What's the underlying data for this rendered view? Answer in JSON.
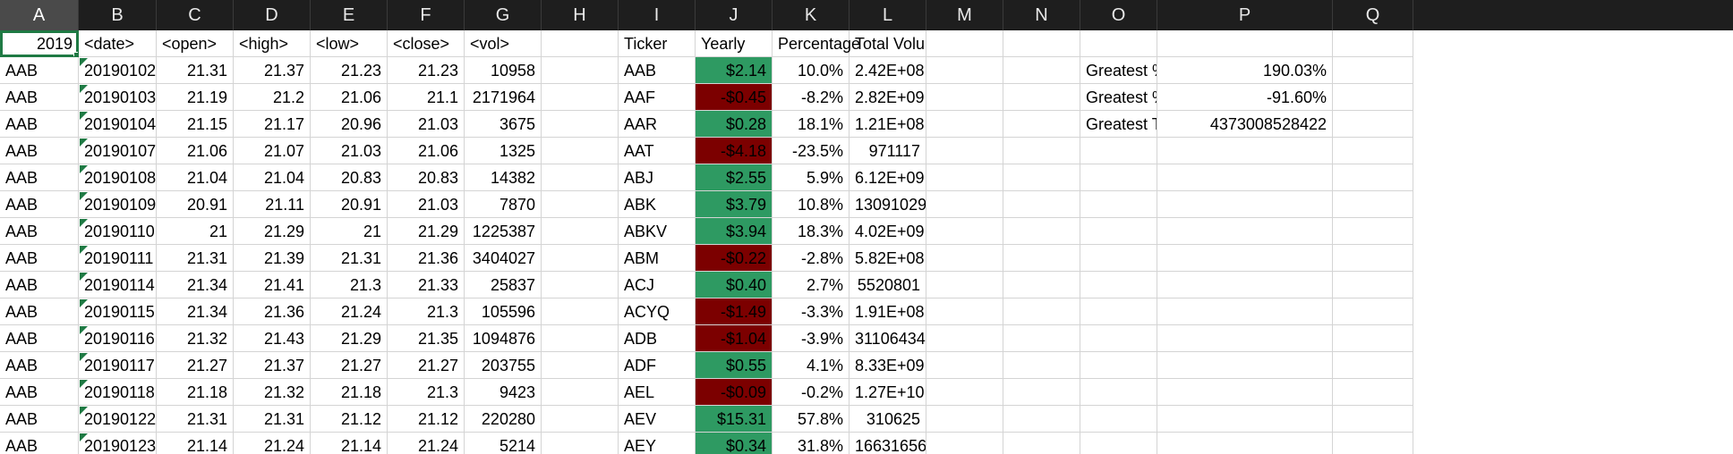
{
  "columns": [
    "A",
    "B",
    "C",
    "D",
    "E",
    "F",
    "G",
    "H",
    "I",
    "J",
    "K",
    "L",
    "M",
    "N",
    "O",
    "P",
    "Q"
  ],
  "active_cell": "A1",
  "header_row": {
    "A": "2019",
    "B": "<date>",
    "C": "<open>",
    "D": "<high>",
    "E": "<low>",
    "F": "<close>",
    "G": "<vol>",
    "I": "Ticker",
    "J": "Yearly",
    "K": "Percentage",
    "L": "Total Volume"
  },
  "stock_rows": [
    {
      "ticker": "AAB",
      "date": "20190102",
      "open": "21.31",
      "high": "21.37",
      "low": "21.23",
      "close": "21.23",
      "vol": "10958"
    },
    {
      "ticker": "AAB",
      "date": "20190103",
      "open": "21.19",
      "high": "21.2",
      "low": "21.06",
      "close": "21.1",
      "vol": "2171964"
    },
    {
      "ticker": "AAB",
      "date": "20190104",
      "open": "21.15",
      "high": "21.17",
      "low": "20.96",
      "close": "21.03",
      "vol": "3675"
    },
    {
      "ticker": "AAB",
      "date": "20190107",
      "open": "21.06",
      "high": "21.07",
      "low": "21.03",
      "close": "21.06",
      "vol": "1325"
    },
    {
      "ticker": "AAB",
      "date": "20190108",
      "open": "21.04",
      "high": "21.04",
      "low": "20.83",
      "close": "20.83",
      "vol": "14382"
    },
    {
      "ticker": "AAB",
      "date": "20190109",
      "open": "20.91",
      "high": "21.11",
      "low": "20.91",
      "close": "21.03",
      "vol": "7870"
    },
    {
      "ticker": "AAB",
      "date": "20190110",
      "open": "21",
      "high": "21.29",
      "low": "21",
      "close": "21.29",
      "vol": "1225387"
    },
    {
      "ticker": "AAB",
      "date": "20190111",
      "open": "21.31",
      "high": "21.39",
      "low": "21.31",
      "close": "21.36",
      "vol": "3404027"
    },
    {
      "ticker": "AAB",
      "date": "20190114",
      "open": "21.34",
      "high": "21.41",
      "low": "21.3",
      "close": "21.33",
      "vol": "25837"
    },
    {
      "ticker": "AAB",
      "date": "20190115",
      "open": "21.34",
      "high": "21.36",
      "low": "21.24",
      "close": "21.3",
      "vol": "105596"
    },
    {
      "ticker": "AAB",
      "date": "20190116",
      "open": "21.32",
      "high": "21.43",
      "low": "21.29",
      "close": "21.35",
      "vol": "1094876"
    },
    {
      "ticker": "AAB",
      "date": "20190117",
      "open": "21.27",
      "high": "21.37",
      "low": "21.27",
      "close": "21.27",
      "vol": "203755"
    },
    {
      "ticker": "AAB",
      "date": "20190118",
      "open": "21.18",
      "high": "21.32",
      "low": "21.18",
      "close": "21.3",
      "vol": "9423"
    },
    {
      "ticker": "AAB",
      "date": "20190122",
      "open": "21.31",
      "high": "21.31",
      "low": "21.12",
      "close": "21.12",
      "vol": "220280"
    },
    {
      "ticker": "AAB",
      "date": "20190123",
      "open": "21.14",
      "high": "21.24",
      "low": "21.14",
      "close": "21.24",
      "vol": "5214"
    }
  ],
  "summary_rows": [
    {
      "ticker": "AAB",
      "yearly": "$2.14",
      "positive": true,
      "percent": "10.0%",
      "total": "2.42E+08"
    },
    {
      "ticker": "AAF",
      "yearly": "-$0.45",
      "positive": false,
      "percent": "-8.2%",
      "total": "2.82E+09"
    },
    {
      "ticker": "AAR",
      "yearly": "$0.28",
      "positive": true,
      "percent": "18.1%",
      "total": "1.21E+08"
    },
    {
      "ticker": "AAT",
      "yearly": "-$4.18",
      "positive": false,
      "percent": "-23.5%",
      "total": "971117"
    },
    {
      "ticker": "ABJ",
      "yearly": "$2.55",
      "positive": true,
      "percent": "5.9%",
      "total": "6.12E+09"
    },
    {
      "ticker": "ABK",
      "yearly": "$3.79",
      "positive": true,
      "percent": "10.8%",
      "total": "13091029"
    },
    {
      "ticker": "ABKV",
      "yearly": "$3.94",
      "positive": true,
      "percent": "18.3%",
      "total": "4.02E+09"
    },
    {
      "ticker": "ABM",
      "yearly": "-$0.22",
      "positive": false,
      "percent": "-2.8%",
      "total": "5.82E+08"
    },
    {
      "ticker": "ACJ",
      "yearly": "$0.40",
      "positive": true,
      "percent": "2.7%",
      "total": "5520801"
    },
    {
      "ticker": "ACYQ",
      "yearly": "-$1.49",
      "positive": false,
      "percent": "-3.3%",
      "total": "1.91E+08"
    },
    {
      "ticker": "ADB",
      "yearly": "-$1.04",
      "positive": false,
      "percent": "-3.9%",
      "total": "31106434"
    },
    {
      "ticker": "ADF",
      "yearly": "$0.55",
      "positive": true,
      "percent": "4.1%",
      "total": "8.33E+09"
    },
    {
      "ticker": "AEL",
      "yearly": "-$0.09",
      "positive": false,
      "percent": "-0.2%",
      "total": "1.27E+10"
    },
    {
      "ticker": "AEV",
      "yearly": "$15.31",
      "positive": true,
      "percent": "57.8%",
      "total": "310625"
    },
    {
      "ticker": "AEY",
      "yearly": "$0.34",
      "positive": true,
      "percent": "31.8%",
      "total": "16631656"
    }
  ],
  "greatest": [
    {
      "label": "Greatest %",
      "value": "190.03%"
    },
    {
      "label": "Greatest %",
      "value": "-91.60%"
    },
    {
      "label": "Greatest To",
      "value": "4373008528422"
    }
  ],
  "colors": {
    "positive": "#2e9a62",
    "negative": "#7c0000",
    "selection": "#1f7a44",
    "header_bg": "#1e1e1e"
  }
}
